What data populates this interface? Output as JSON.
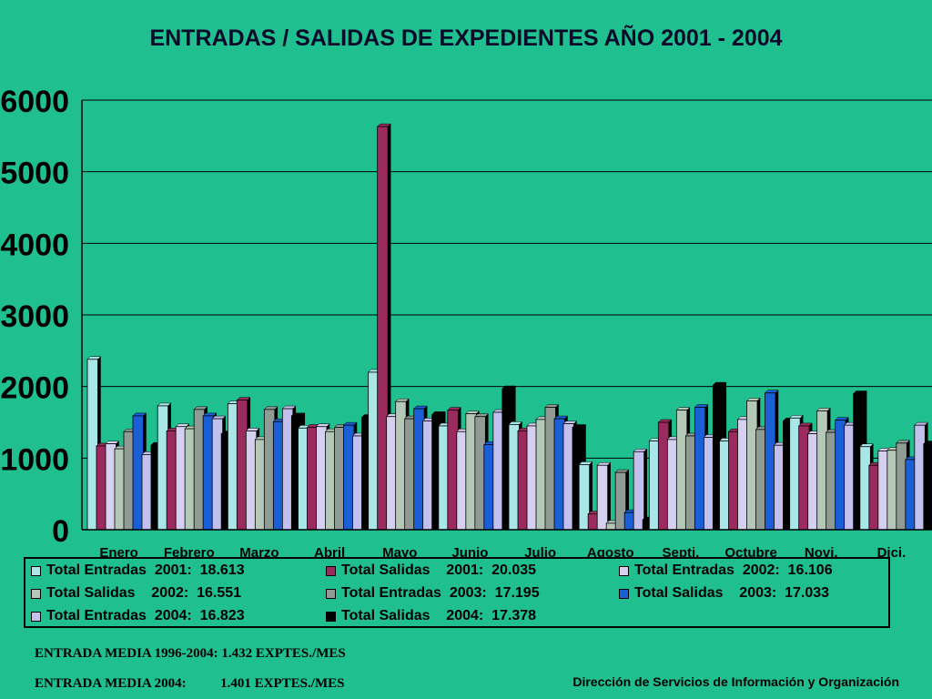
{
  "title": "ENTRADAS / SALIDAS DE EXPEDIENTES AÑO 2001 - 2004",
  "colors": {
    "background": "#1fbf8f",
    "plot_background": "#1fbf8f"
  },
  "chart_data": {
    "type": "bar",
    "title": "ENTRADAS / SALIDAS DE EXPEDIENTES AÑO 2001 - 2004",
    "xlabel": "",
    "ylabel": "",
    "ylim": [
      0,
      6000
    ],
    "yticks": [
      "0",
      "1000",
      "2000",
      "3000",
      "4000",
      "5000",
      "6000"
    ],
    "grid": true,
    "legend_position": "bottom",
    "categories": [
      "Enero",
      "Febrero",
      "Marzo",
      "Abril",
      "Mayo",
      "Junio",
      "Julio",
      "Agosto",
      "Septi.",
      "Octubre",
      "Novi.",
      "Dici."
    ],
    "series": [
      {
        "name": "Total Entradas  2001:  18.613",
        "color": "#a8e6e8",
        "values": [
          2380,
          1730,
          1760,
          1420,
          2200,
          1450,
          1470,
          910,
          1240,
          1240,
          1560,
          1160
        ]
      },
      {
        "name": "Total Salidas    2001:  20.035",
        "color": "#9b2a5e",
        "values": [
          1170,
          1380,
          1810,
          1430,
          5630,
          1670,
          1380,
          220,
          1500,
          1370,
          1450,
          900
        ]
      },
      {
        "name": "Total Entradas  2002:  16.106",
        "color": "#d6d0f0",
        "values": [
          1200,
          1440,
          1380,
          1440,
          1580,
          1370,
          1450,
          900,
          1260,
          1540,
          1340,
          1100
        ]
      },
      {
        "name": "Total Salidas    2002:  16.551",
        "color": "#b4c8b8",
        "values": [
          1130,
          1410,
          1260,
          1370,
          1790,
          1620,
          1540,
          90,
          1670,
          1800,
          1660,
          1110
        ]
      },
      {
        "name": "Total Entradas  2003:  17.195",
        "color": "#8f9b93",
        "values": [
          1370,
          1680,
          1680,
          1430,
          1550,
          1580,
          1710,
          800,
          1310,
          1400,
          1360,
          1210
        ]
      },
      {
        "name": "Total Salidas    2003:  17.033",
        "color": "#1b5fd6",
        "values": [
          1590,
          1590,
          1510,
          1460,
          1690,
          1190,
          1550,
          240,
          1710,
          1910,
          1530,
          980
        ]
      },
      {
        "name": "Total Entradas  2004:  16.823",
        "color": "#c4c0ee",
        "values": [
          1050,
          1550,
          1690,
          1310,
          1520,
          1640,
          1480,
          1090,
          1290,
          1180,
          1460,
          1460
        ]
      },
      {
        "name": "Total Salidas    2004:  17.378",
        "color": "#000000",
        "values": [
          1180,
          1340,
          1590,
          1570,
          1610,
          1970,
          1430,
          140,
          2020,
          1520,
          1900,
          1200
        ]
      }
    ]
  },
  "footer": {
    "note_1": "ENTRADA MEDIA 1996-2004: 1.432 EXPTES./MES",
    "note_2": "ENTRADA MEDIA 2004:          1.401 EXPTES./MES",
    "credit": "Dirección de Servicios de  Información y Organización"
  }
}
